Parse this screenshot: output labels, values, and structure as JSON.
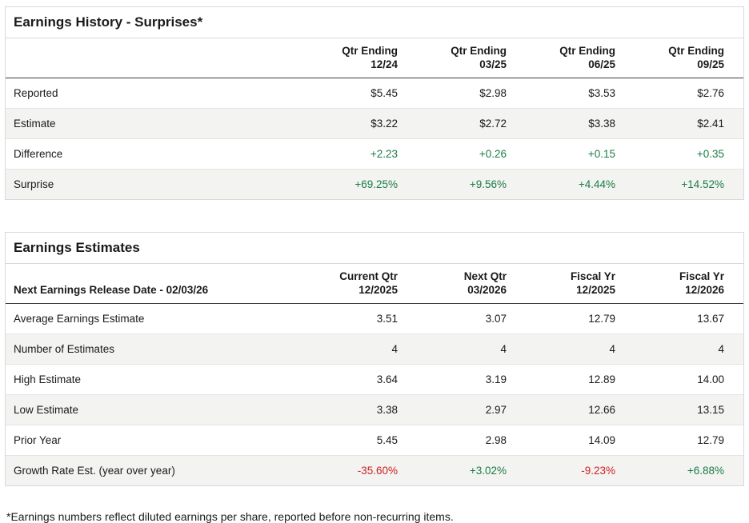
{
  "colors": {
    "positive": "#1a7d45",
    "negative": "#cc2222",
    "border": "#d9d9d9",
    "stripe": "#f3f3f1",
    "header_rule": "#3c3c3c",
    "text": "#1a1a1a"
  },
  "history": {
    "title": "Earnings History - Surprises*",
    "columns": [
      {
        "line1": "Qtr Ending",
        "line2": "12/24"
      },
      {
        "line1": "Qtr Ending",
        "line2": "03/25"
      },
      {
        "line1": "Qtr Ending",
        "line2": "06/25"
      },
      {
        "line1": "Qtr Ending",
        "line2": "09/25"
      }
    ],
    "rows": [
      {
        "label": "Reported",
        "values": [
          "$5.45",
          "$2.98",
          "$3.53",
          "$2.76"
        ]
      },
      {
        "label": "Estimate",
        "values": [
          "$3.22",
          "$2.72",
          "$3.38",
          "$2.41"
        ]
      },
      {
        "label": "Difference",
        "values": [
          "+2.23",
          "+0.26",
          "+0.15",
          "+0.35"
        ]
      },
      {
        "label": "Surprise",
        "values": [
          "+69.25%",
          "+9.56%",
          "+4.44%",
          "+14.52%"
        ]
      }
    ]
  },
  "estimates": {
    "title": "Earnings Estimates",
    "release_label": "Next Earnings Release Date - 02/03/26",
    "columns": [
      {
        "line1": "Current Qtr",
        "line2": "12/2025"
      },
      {
        "line1": "Next Qtr",
        "line2": "03/2026"
      },
      {
        "line1": "Fiscal Yr",
        "line2": "12/2025"
      },
      {
        "line1": "Fiscal Yr",
        "line2": "12/2026"
      }
    ],
    "rows": [
      {
        "label": "Average Earnings Estimate",
        "values": [
          "3.51",
          "3.07",
          "12.79",
          "13.67"
        ]
      },
      {
        "label": "Number of Estimates",
        "values": [
          "4",
          "4",
          "4",
          "4"
        ]
      },
      {
        "label": "High Estimate",
        "values": [
          "3.64",
          "3.19",
          "12.89",
          "14.00"
        ]
      },
      {
        "label": "Low Estimate",
        "values": [
          "3.38",
          "2.97",
          "12.66",
          "13.15"
        ]
      },
      {
        "label": "Prior Year",
        "values": [
          "5.45",
          "2.98",
          "14.09",
          "12.79"
        ]
      },
      {
        "label": "Growth Rate Est. (year over year)",
        "values": [
          "-35.60%",
          "+3.02%",
          "-9.23%",
          "+6.88%"
        ]
      }
    ]
  },
  "footnote": "*Earnings numbers reflect diluted earnings per share, reported before non-recurring items."
}
